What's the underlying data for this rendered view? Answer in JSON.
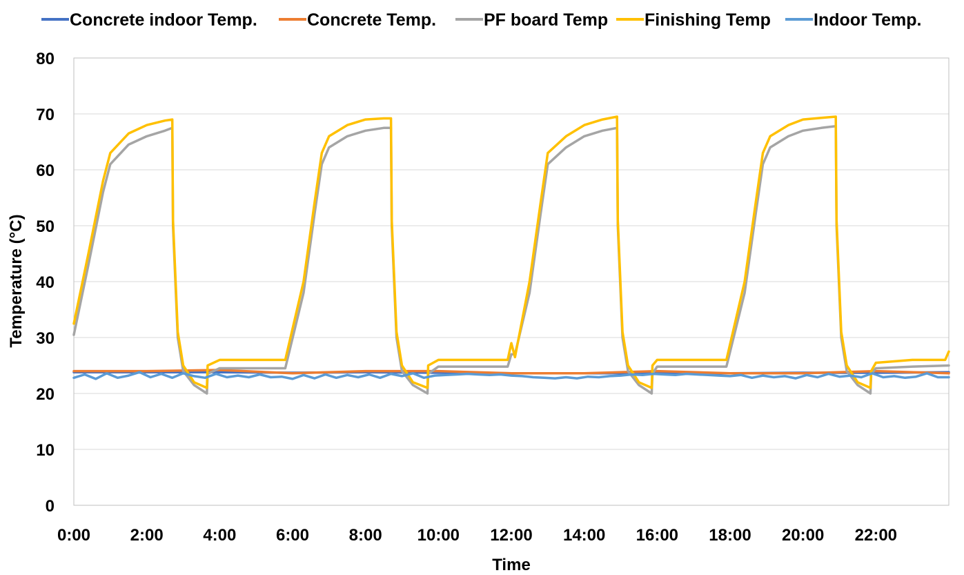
{
  "chart_data": {
    "type": "line",
    "xlabel": "Time",
    "ylabel": "Temperature (°C)",
    "ylim": [
      0,
      80
    ],
    "xlim": [
      0,
      24
    ],
    "x_tick_labels": [
      "0:00",
      "2:00",
      "4:00",
      "6:00",
      "8:00",
      "10:00",
      "12:00",
      "14:00",
      "16:00",
      "18:00",
      "20:00",
      "22:00"
    ],
    "y_tick_labels": [
      "0",
      "10",
      "20",
      "30",
      "40",
      "50",
      "60",
      "70",
      "80"
    ],
    "grid": "horizontal",
    "legend": "top",
    "series": [
      {
        "name": "Concrete indoor Temp.",
        "color": "#4472C4",
        "x": [
          0,
          2,
          4,
          6,
          8,
          10,
          12,
          14,
          16,
          18,
          20,
          22,
          24
        ],
        "y": [
          23.8,
          23.8,
          23.8,
          23.7,
          23.8,
          23.7,
          23.6,
          23.6,
          23.6,
          23.6,
          23.7,
          23.7,
          23.8
        ]
      },
      {
        "name": "Concrete Temp.",
        "color": "#ED7D31",
        "x": [
          0,
          2,
          4,
          6,
          8,
          10,
          12,
          14,
          16,
          18,
          20,
          22,
          24
        ],
        "y": [
          24.0,
          24.0,
          24.2,
          23.6,
          24.0,
          24.0,
          23.6,
          23.6,
          24.0,
          23.6,
          23.6,
          24.0,
          23.6
        ]
      },
      {
        "name": "PF board Temp",
        "color": "#A5A5A5",
        "x": [
          0,
          0.4,
          0.8,
          1.0,
          1.5,
          2.0,
          2.5,
          2.7,
          2.72,
          2.85,
          3.0,
          3.3,
          3.65,
          3.67,
          4.0,
          5.8,
          6.3,
          6.6,
          6.8,
          7.0,
          7.5,
          8.0,
          8.5,
          8.7,
          8.72,
          8.85,
          9.0,
          9.3,
          9.7,
          9.72,
          10.0,
          11.9,
          12.0,
          12.1,
          12.5,
          12.8,
          13.0,
          13.5,
          14.0,
          14.5,
          14.9,
          14.92,
          15.05,
          15.2,
          15.5,
          15.85,
          15.87,
          16.0,
          17.9,
          18.4,
          18.7,
          18.9,
          19.1,
          19.6,
          20.0,
          20.5,
          20.9,
          20.92,
          21.05,
          21.2,
          21.5,
          21.85,
          21.87,
          22.0,
          23.0,
          24.0
        ],
        "y": [
          30.5,
          43,
          56,
          61,
          64.5,
          66,
          67,
          67.5,
          50,
          30,
          24,
          21.5,
          20,
          23.5,
          24.5,
          24.5,
          38,
          52,
          61,
          64,
          66,
          67,
          67.5,
          67.5,
          50,
          30,
          24,
          21.5,
          20,
          23.5,
          24.8,
          24.8,
          27,
          27,
          38,
          52,
          61,
          64,
          66,
          67,
          67.5,
          50,
          30,
          24,
          21.5,
          20,
          23.5,
          24.8,
          24.8,
          38,
          52,
          61,
          64,
          66,
          67,
          67.5,
          67.8,
          50,
          30,
          24,
          21.5,
          20,
          23.5,
          24.5,
          24.8,
          25
        ]
      },
      {
        "name": "Finishing Temp",
        "color": "#FFC000",
        "x": [
          0,
          0.4,
          0.8,
          1.0,
          1.5,
          2.0,
          2.5,
          2.7,
          2.72,
          2.85,
          3.0,
          3.3,
          3.65,
          3.67,
          4.0,
          5.8,
          6.3,
          6.6,
          6.8,
          7.0,
          7.5,
          8.0,
          8.5,
          8.7,
          8.72,
          8.85,
          9.0,
          9.3,
          9.7,
          9.72,
          10.0,
          11.9,
          12.0,
          12.1,
          12.5,
          12.8,
          13.0,
          13.5,
          14.0,
          14.5,
          14.9,
          14.92,
          15.05,
          15.2,
          15.5,
          15.85,
          15.87,
          16.0,
          17.9,
          18.4,
          18.7,
          18.9,
          19.1,
          19.6,
          20.0,
          20.5,
          20.9,
          20.92,
          21.05,
          21.2,
          21.5,
          21.85,
          21.87,
          22.0,
          23.0,
          23.9,
          24.0
        ],
        "y": [
          32.5,
          45,
          58,
          63,
          66.5,
          68,
          68.8,
          69,
          51,
          31,
          25,
          22,
          21,
          25,
          26,
          26,
          40,
          54,
          63,
          66,
          68,
          69,
          69.2,
          69.2,
          51,
          31,
          25,
          22,
          21,
          25,
          26,
          26,
          29,
          26.5,
          40,
          54,
          63,
          66,
          68,
          69,
          69.5,
          51,
          31,
          25,
          22,
          21,
          25,
          26,
          26,
          40,
          54,
          63,
          66,
          68,
          69,
          69.3,
          69.5,
          51,
          31,
          25,
          22,
          21,
          24,
          25.5,
          26,
          26,
          27.5
        ]
      },
      {
        "name": "Indoor Temp.",
        "color": "#5B9BD5",
        "x": [
          0,
          0.3,
          0.6,
          0.9,
          1.2,
          1.5,
          1.8,
          2.1,
          2.4,
          2.7,
          3.0,
          3.3,
          3.6,
          3.9,
          4.2,
          4.5,
          4.8,
          5.1,
          5.4,
          5.7,
          6.0,
          6.3,
          6.6,
          6.9,
          7.2,
          7.5,
          7.8,
          8.1,
          8.4,
          8.7,
          9.0,
          9.3,
          9.6,
          9.9,
          10.2,
          10.5,
          10.8,
          11.1,
          11.4,
          11.7,
          12.0,
          12.3,
          12.6,
          12.9,
          13.2,
          13.5,
          13.8,
          14.1,
          14.4,
          14.7,
          15.0,
          15.3,
          15.6,
          15.9,
          16.2,
          16.5,
          16.8,
          17.1,
          17.4,
          17.7,
          18.0,
          18.3,
          18.6,
          18.9,
          19.2,
          19.5,
          19.8,
          20.1,
          20.4,
          20.7,
          21.0,
          21.3,
          21.6,
          21.9,
          22.2,
          22.5,
          22.8,
          23.1,
          23.4,
          23.7,
          24.0
        ],
        "y": [
          22.8,
          23.4,
          22.6,
          23.6,
          22.8,
          23.2,
          23.8,
          22.9,
          23.5,
          22.8,
          23.6,
          23.1,
          22.8,
          23.5,
          22.9,
          23.2,
          22.9,
          23.4,
          22.9,
          23.0,
          22.6,
          23.3,
          22.7,
          23.4,
          22.8,
          23.3,
          22.9,
          23.4,
          22.8,
          23.5,
          23.1,
          23.6,
          22.8,
          23.2,
          23.3,
          23.4,
          23.5,
          23.4,
          23.3,
          23.4,
          23.2,
          23.1,
          22.9,
          22.8,
          22.7,
          22.9,
          22.7,
          23.0,
          22.9,
          23.1,
          23.2,
          23.4,
          23.3,
          23.5,
          23.4,
          23.3,
          23.5,
          23.4,
          23.3,
          23.2,
          23.1,
          23.3,
          22.8,
          23.2,
          22.9,
          23.1,
          22.7,
          23.3,
          22.9,
          23.5,
          23.0,
          23.2,
          22.9,
          23.6,
          22.9,
          23.1,
          22.8,
          23.0,
          23.6,
          22.9,
          22.9
        ]
      }
    ]
  }
}
